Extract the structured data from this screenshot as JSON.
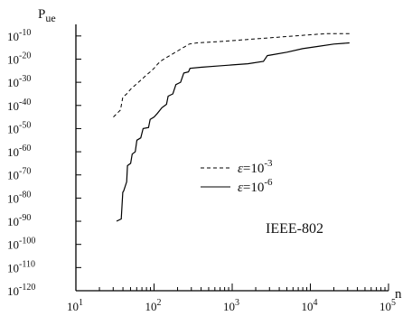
{
  "chart_data": {
    "type": "line",
    "title": "",
    "ylabel_main": "P",
    "ylabel_sub": "ue",
    "xlabel": "n",
    "xscale": "log",
    "yscale": "log",
    "xlim_exp": [
      1,
      5
    ],
    "ylim_exp": [
      -120,
      -5
    ],
    "x_ticks": [
      {
        "exp": 1,
        "label": "10",
        "sup": "1"
      },
      {
        "exp": 2,
        "label": "10",
        "sup": "2"
      },
      {
        "exp": 3,
        "label": "10",
        "sup": "3"
      },
      {
        "exp": 4,
        "label": "10",
        "sup": "4"
      },
      {
        "exp": 5,
        "label": "10",
        "sup": "5"
      }
    ],
    "y_ticks": [
      {
        "exp": -10,
        "label": "10",
        "sup": "-10"
      },
      {
        "exp": -20,
        "label": "10",
        "sup": "-20"
      },
      {
        "exp": -30,
        "label": "10",
        "sup": "-30"
      },
      {
        "exp": -40,
        "label": "10",
        "sup": "-40"
      },
      {
        "exp": -50,
        "label": "10",
        "sup": "-50"
      },
      {
        "exp": -60,
        "label": "10",
        "sup": "-60"
      },
      {
        "exp": -70,
        "label": "10",
        "sup": "-70"
      },
      {
        "exp": -80,
        "label": "10",
        "sup": "-80"
      },
      {
        "exp": -90,
        "label": "10",
        "sup": "-90"
      },
      {
        "exp": -100,
        "label": "10",
        "sup": "-100"
      },
      {
        "exp": -110,
        "label": "10",
        "sup": "-110"
      },
      {
        "exp": -120,
        "label": "10",
        "sup": "-120"
      }
    ],
    "legend": {
      "position": "center-right",
      "entries": [
        {
          "series": 0,
          "symbol": "ε",
          "base": "=10",
          "sup": "-3"
        },
        {
          "series": 1,
          "symbol": "ε",
          "base": "=10",
          "sup": "-6"
        }
      ]
    },
    "annotation": "IEEE-802",
    "series": [
      {
        "style": "dashed",
        "points": [
          [
            1.48,
            -45
          ],
          [
            1.57,
            -42
          ],
          [
            1.6,
            -36.5
          ],
          [
            1.65,
            -35
          ],
          [
            1.7,
            -33
          ],
          [
            1.75,
            -31.5
          ],
          [
            1.8,
            -30
          ],
          [
            1.85,
            -28.5
          ],
          [
            1.9,
            -27
          ],
          [
            1.95,
            -25.5
          ],
          [
            2.0,
            -24
          ],
          [
            2.05,
            -22
          ],
          [
            2.1,
            -20.5
          ],
          [
            2.15,
            -19.5
          ],
          [
            2.2,
            -18.5
          ],
          [
            2.25,
            -17.5
          ],
          [
            2.3,
            -16.5
          ],
          [
            2.35,
            -15.5
          ],
          [
            2.4,
            -14.5
          ],
          [
            2.45,
            -13.5
          ],
          [
            2.55,
            -13
          ],
          [
            2.8,
            -12.5
          ],
          [
            3.0,
            -12
          ],
          [
            3.2,
            -11.5
          ],
          [
            3.4,
            -11
          ],
          [
            3.6,
            -10.5
          ],
          [
            3.8,
            -10
          ],
          [
            4.0,
            -9.5
          ],
          [
            4.2,
            -9
          ],
          [
            4.5,
            -9
          ]
        ]
      },
      {
        "style": "solid",
        "points": [
          [
            1.52,
            -90
          ],
          [
            1.58,
            -89
          ],
          [
            1.6,
            -77.5
          ],
          [
            1.61,
            -77
          ],
          [
            1.65,
            -73
          ],
          [
            1.66,
            -66
          ],
          [
            1.7,
            -65
          ],
          [
            1.72,
            -61
          ],
          [
            1.76,
            -60
          ],
          [
            1.78,
            -55
          ],
          [
            1.83,
            -54
          ],
          [
            1.86,
            -50
          ],
          [
            1.93,
            -49.5
          ],
          [
            1.95,
            -46
          ],
          [
            2.0,
            -45
          ],
          [
            2.04,
            -43.5
          ],
          [
            2.1,
            -41
          ],
          [
            2.16,
            -39.5
          ],
          [
            2.18,
            -36
          ],
          [
            2.24,
            -35
          ],
          [
            2.28,
            -31
          ],
          [
            2.34,
            -30
          ],
          [
            2.38,
            -26
          ],
          [
            2.44,
            -25.5
          ],
          [
            2.46,
            -24
          ],
          [
            2.6,
            -23.5
          ],
          [
            2.8,
            -23
          ],
          [
            3.0,
            -22.5
          ],
          [
            3.2,
            -22
          ],
          [
            3.4,
            -21
          ],
          [
            3.45,
            -18.5
          ],
          [
            3.7,
            -17
          ],
          [
            3.9,
            -15.5
          ],
          [
            4.1,
            -14.5
          ],
          [
            4.3,
            -13.5
          ],
          [
            4.5,
            -13
          ]
        ]
      }
    ]
  }
}
